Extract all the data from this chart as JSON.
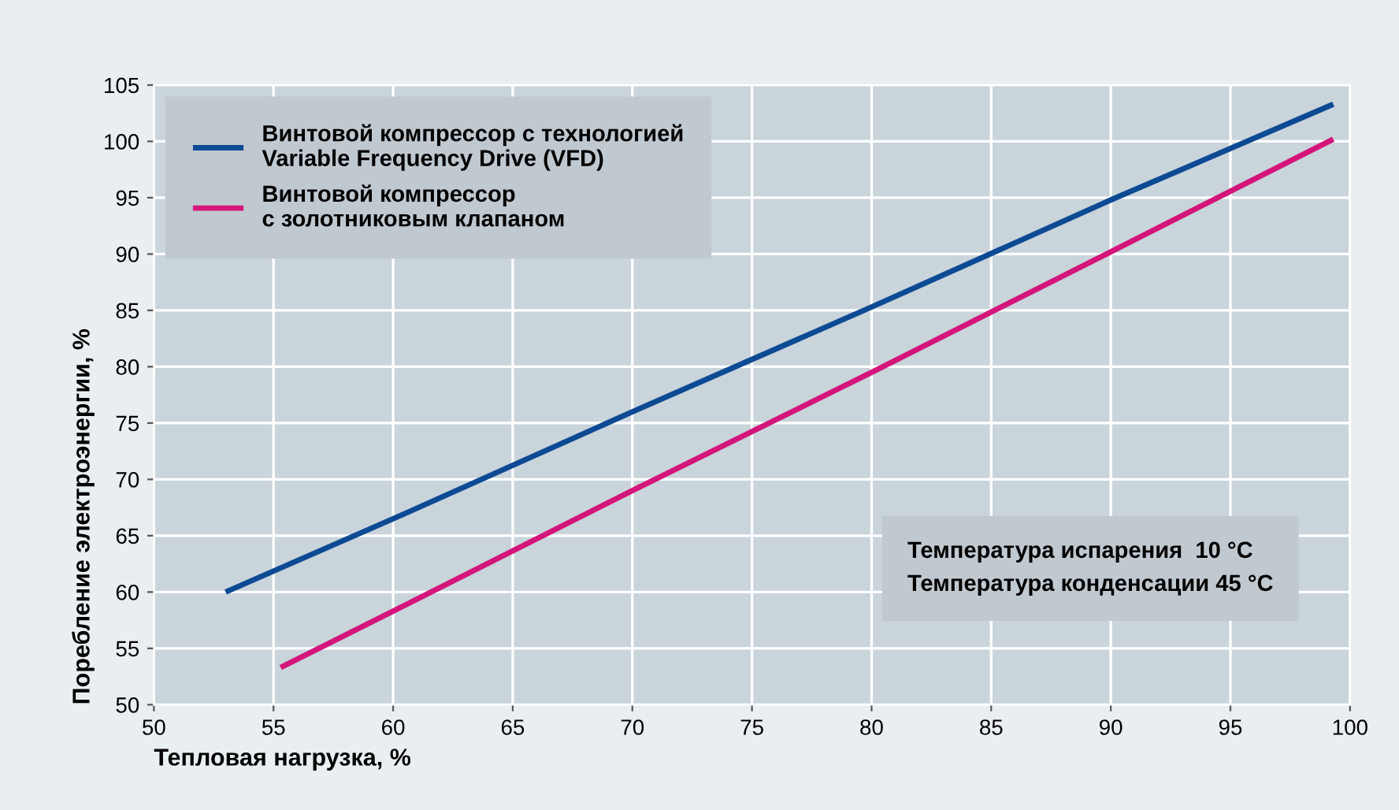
{
  "chart_data": {
    "type": "line",
    "xlabel": "Тепловая нагрузка, %",
    "ylabel": "Пореблениe электроэнергии, %",
    "xlim": [
      50,
      100
    ],
    "xticks": [
      50,
      55,
      60,
      65,
      70,
      75,
      80,
      85,
      90,
      95,
      100
    ],
    "ylim": [
      50,
      105
    ],
    "yticks": [
      50,
      55,
      60,
      65,
      70,
      75,
      80,
      85,
      90,
      95,
      100,
      105
    ],
    "grid": true,
    "legend": "top left",
    "line_style": "solid",
    "marker": "none",
    "series": [
      {
        "name": "Винтовой компрессор с технологией\nVariable Frequency Drive (VFD)",
        "color": "#0d4a94",
        "x": [
          53,
          60,
          70,
          80,
          90,
          99.3
        ],
        "values": [
          60,
          66.5,
          76,
          85.3,
          94.8,
          103.3
        ]
      },
      {
        "name": "Винтовой компрессор\nс золотниковым клапаном",
        "color": "#d4157a",
        "x": [
          55.3,
          60,
          70,
          80,
          90,
          99.3
        ],
        "values": [
          53.3,
          58.3,
          69,
          79.5,
          90.2,
          100.2
        ]
      }
    ],
    "annotations": [
      "Температура испарения  10 °C\nТемпература конденсации 45 °C"
    ]
  }
}
